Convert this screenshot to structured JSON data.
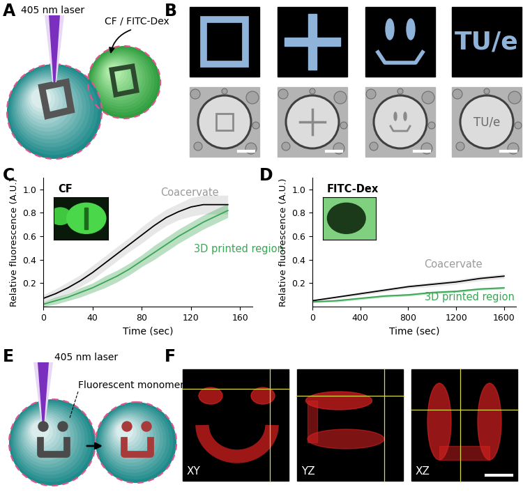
{
  "panel_labels": [
    "A",
    "B",
    "C",
    "D",
    "E",
    "F"
  ],
  "panel_A": {
    "laser": "405 nm laser",
    "dyes": "CF / FITC-Dex"
  },
  "panel_B": {
    "pattern_text": "TU/e"
  },
  "chart_data": [
    {
      "type": "line",
      "inset_label": "CF",
      "x_label": "Time (sec)",
      "y_label": "Relative fluorescence (A.U.)",
      "x": [
        0,
        10,
        20,
        30,
        40,
        50,
        60,
        70,
        80,
        90,
        100,
        110,
        120,
        130,
        140,
        150
      ],
      "series": [
        {
          "name": "Coacervate",
          "color": "#000000",
          "values": [
            0.07,
            0.11,
            0.16,
            0.22,
            0.29,
            0.37,
            0.45,
            0.53,
            0.61,
            0.69,
            0.76,
            0.81,
            0.85,
            0.87,
            0.87,
            0.87
          ],
          "error": [
            0.03,
            0.04,
            0.05,
            0.05,
            0.06,
            0.06,
            0.06,
            0.06,
            0.07,
            0.07,
            0.07,
            0.07,
            0.08,
            0.08,
            0.08,
            0.08
          ]
        },
        {
          "name": "3D printed region",
          "color": "#3aa655",
          "values": [
            0.02,
            0.05,
            0.08,
            0.12,
            0.16,
            0.21,
            0.26,
            0.32,
            0.39,
            0.46,
            0.53,
            0.6,
            0.66,
            0.72,
            0.77,
            0.82
          ],
          "error": [
            0.02,
            0.03,
            0.03,
            0.04,
            0.04,
            0.05,
            0.05,
            0.05,
            0.05,
            0.06,
            0.06,
            0.06,
            0.06,
            0.06,
            0.06,
            0.06
          ]
        }
      ],
      "xlim": [
        0,
        170
      ],
      "ylim": [
        0,
        1.1
      ],
      "xticks": [
        0,
        40,
        80,
        120,
        160
      ],
      "yticks": [
        0.2,
        0.4,
        0.6,
        0.8,
        1.0
      ]
    },
    {
      "type": "line",
      "inset_label": "FITC-Dex",
      "x_label": "Time (sec)",
      "y_label": "Relative fluorescence (A.U.)",
      "x": [
        0,
        200,
        400,
        600,
        800,
        1000,
        1200,
        1400,
        1600
      ],
      "series": [
        {
          "name": "Coacervate",
          "color": "#000000",
          "values": [
            0.05,
            0.08,
            0.11,
            0.14,
            0.17,
            0.19,
            0.21,
            0.24,
            0.26
          ],
          "error": [
            0.01,
            0.01,
            0.015,
            0.015,
            0.015,
            0.02,
            0.02,
            0.02,
            0.02
          ]
        },
        {
          "name": "3D printed region",
          "color": "#3aa655",
          "values": [
            0.04,
            0.05,
            0.07,
            0.09,
            0.1,
            0.12,
            0.13,
            0.15,
            0.16
          ],
          "error": [
            0.005,
            0.01,
            0.01,
            0.01,
            0.01,
            0.01,
            0.01,
            0.01,
            0.01
          ]
        }
      ],
      "xlim": [
        0,
        1700
      ],
      "ylim": [
        0,
        1.1
      ],
      "xticks": [
        0,
        400,
        800,
        1200,
        1600
      ],
      "yticks": [
        0.2,
        0.4,
        0.6,
        0.8,
        1.0
      ]
    }
  ],
  "panel_E": {
    "laser": "405 nm laser",
    "monomer": "Fluorescent monomer"
  },
  "panel_F": {
    "views": [
      "XY",
      "YZ",
      "XZ"
    ]
  }
}
